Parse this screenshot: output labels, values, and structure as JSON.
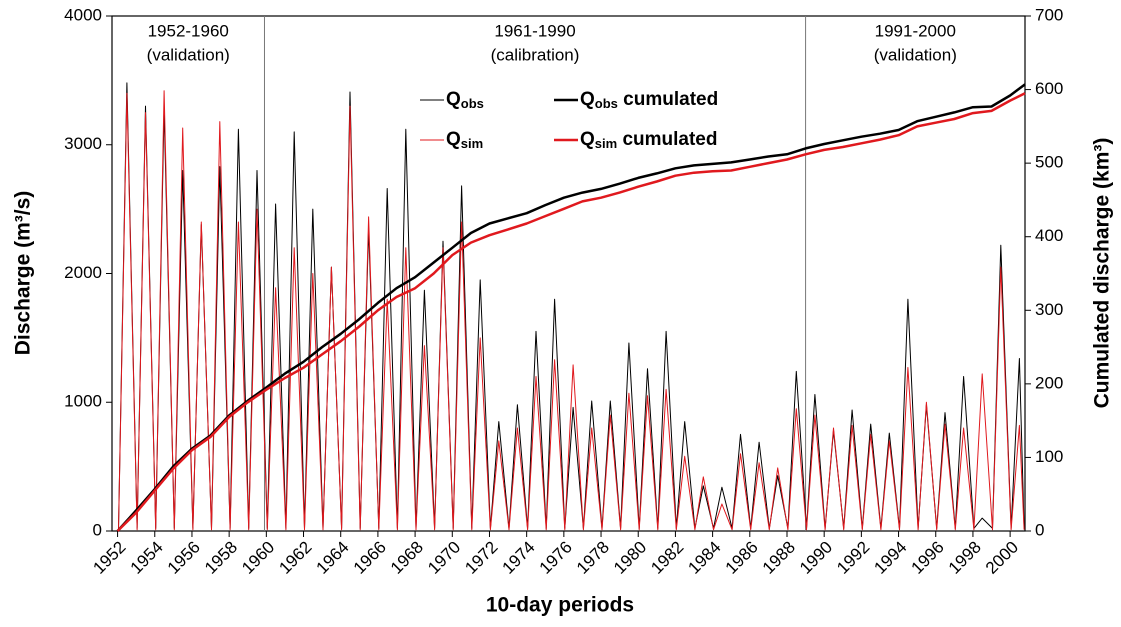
{
  "chart_data": {
    "type": "line",
    "x_label": "10-day periods",
    "y_label": "Discharge (m³/s)",
    "y2_label": "Cumulated discharge (km³)",
    "xlim": [
      1951.7,
      2000.8
    ],
    "xticks": [
      1952,
      1954,
      1956,
      1958,
      1960,
      1962,
      1964,
      1966,
      1968,
      1970,
      1972,
      1974,
      1976,
      1978,
      1980,
      1982,
      1984,
      1986,
      1988,
      1990,
      1992,
      1994,
      1996,
      1998,
      2000
    ],
    "ylim": [
      0,
      4000
    ],
    "yticks": [
      0,
      1000,
      2000,
      3000,
      4000
    ],
    "y2lim": [
      0,
      700
    ],
    "y2ticks": [
      0,
      100,
      200,
      300,
      400,
      500,
      600,
      700
    ],
    "legend": "upper center",
    "dividers": [
      1959.9,
      1989.0
    ],
    "annotations": [
      [
        "1952-1960",
        "(validation)"
      ],
      [
        "1961-1990",
        "(calibration)"
      ],
      [
        "1991-2000",
        "(validation)"
      ]
    ],
    "series": [
      {
        "name": [
          "Q",
          "obs"
        ],
        "color": "#000000",
        "width": 1,
        "x": [
          1952.05,
          1952.5,
          1953.05,
          1953.5,
          1954.05,
          1954.5,
          1955.05,
          1955.5,
          1956.05,
          1956.5,
          1957.05,
          1957.5,
          1958.05,
          1958.5,
          1959.05,
          1959.5,
          1960.05,
          1960.5,
          1961.05,
          1961.5,
          1962.05,
          1962.5,
          1963.05,
          1963.5,
          1964.05,
          1964.5,
          1965.05,
          1965.5,
          1966.05,
          1966.5,
          1967.05,
          1967.5,
          1968.05,
          1968.5,
          1969.05,
          1969.5,
          1970.05,
          1970.5,
          1971.05,
          1971.5,
          1972.05,
          1972.5,
          1973.05,
          1973.5,
          1974.05,
          1974.5,
          1975.05,
          1975.5,
          1976.05,
          1976.5,
          1977.05,
          1977.5,
          1978.05,
          1978.5,
          1979.05,
          1979.5,
          1980.05,
          1980.5,
          1981.05,
          1981.5,
          1982.05,
          1982.5,
          1983.05,
          1983.5,
          1984.05,
          1984.5,
          1985.05,
          1985.5,
          1986.05,
          1986.5,
          1987.05,
          1987.5,
          1988.05,
          1988.5,
          1989.05,
          1989.5,
          1990.05,
          1990.5,
          1991.05,
          1991.5,
          1992.05,
          1992.5,
          1993.05,
          1993.5,
          1994.05,
          1994.5,
          1995.05,
          1995.5,
          1996.05,
          1996.5,
          1997.05,
          1997.5,
          1998.05,
          1998.5,
          1999.05,
          1999.5,
          2000.05,
          2000.5,
          2000.75
        ],
        "values": [
          20,
          3480,
          20,
          3300,
          20,
          3280,
          20,
          2800,
          20,
          2380,
          20,
          2830,
          20,
          3120,
          20,
          2800,
          20,
          2540,
          20,
          3100,
          20,
          2500,
          20,
          2050,
          20,
          3410,
          20,
          2350,
          20,
          2660,
          20,
          3120,
          20,
          1870,
          20,
          2250,
          20,
          2680,
          20,
          1950,
          20,
          850,
          20,
          980,
          20,
          1550,
          20,
          1800,
          20,
          960,
          20,
          1010,
          20,
          1010,
          20,
          1460,
          20,
          1260,
          20,
          1550,
          20,
          850,
          20,
          350,
          20,
          340,
          20,
          750,
          20,
          690,
          20,
          430,
          20,
          1240,
          20,
          1060,
          20,
          780,
          20,
          940,
          20,
          830,
          20,
          760,
          20,
          1800,
          20,
          980,
          20,
          920,
          20,
          1200,
          20,
          100,
          20,
          2220,
          20,
          1340,
          20
        ]
      },
      {
        "name": [
          "Q",
          "sim"
        ],
        "color": "#e0191e",
        "width": 1,
        "x": [
          1952.05,
          1952.5,
          1953.05,
          1953.5,
          1954.05,
          1954.5,
          1955.05,
          1955.5,
          1956.05,
          1956.5,
          1957.05,
          1957.5,
          1958.05,
          1958.5,
          1959.05,
          1959.5,
          1960.05,
          1960.5,
          1961.05,
          1961.5,
          1962.05,
          1962.5,
          1963.05,
          1963.5,
          1964.05,
          1964.5,
          1965.05,
          1965.5,
          1966.05,
          1966.5,
          1967.05,
          1967.5,
          1968.05,
          1968.5,
          1969.05,
          1969.5,
          1970.05,
          1970.5,
          1971.05,
          1971.5,
          1972.05,
          1972.5,
          1973.05,
          1973.5,
          1974.05,
          1974.5,
          1975.05,
          1975.5,
          1976.05,
          1976.5,
          1977.05,
          1977.5,
          1978.05,
          1978.5,
          1979.05,
          1979.5,
          1980.05,
          1980.5,
          1981.05,
          1981.5,
          1982.05,
          1982.5,
          1983.05,
          1983.5,
          1984.05,
          1984.5,
          1985.05,
          1985.5,
          1986.05,
          1986.5,
          1987.05,
          1987.5,
          1988.05,
          1988.5,
          1989.05,
          1989.5,
          1990.05,
          1990.5,
          1991.05,
          1991.5,
          1992.05,
          1992.5,
          1993.05,
          1993.5,
          1994.05,
          1994.5,
          1995.05,
          1995.5,
          1996.05,
          1996.5,
          1997.05,
          1997.5,
          1998.05,
          1998.5,
          1999.05,
          1999.5,
          2000.05,
          2000.5,
          2000.75
        ],
        "values": [
          10,
          3400,
          10,
          3250,
          10,
          3420,
          10,
          3130,
          10,
          2400,
          10,
          3180,
          10,
          2400,
          10,
          2500,
          10,
          1890,
          10,
          2200,
          10,
          2000,
          10,
          2050,
          10,
          3300,
          10,
          2440,
          10,
          1800,
          10,
          2200,
          10,
          1440,
          10,
          2200,
          10,
          2400,
          10,
          1500,
          10,
          700,
          10,
          800,
          10,
          1200,
          10,
          1330,
          10,
          1290,
          10,
          800,
          10,
          900,
          10,
          1070,
          10,
          1050,
          10,
          1100,
          10,
          580,
          10,
          420,
          10,
          210,
          10,
          600,
          10,
          530,
          10,
          490,
          10,
          950,
          10,
          900,
          10,
          800,
          10,
          820,
          10,
          750,
          10,
          700,
          10,
          1270,
          10,
          1000,
          10,
          830,
          10,
          800,
          10,
          1220,
          10,
          2050,
          10,
          820,
          10
        ]
      },
      {
        "name": [
          "Q",
          "obs",
          " cumulated"
        ],
        "color": "#000000",
        "width": 2.5,
        "axis": "y2",
        "x": [
          1952,
          1953,
          1954,
          1955,
          1956,
          1957,
          1958,
          1959,
          1960,
          1961,
          1962,
          1963,
          1964,
          1965,
          1966,
          1967,
          1968,
          1969,
          1970,
          1971,
          1972,
          1973,
          1974,
          1975,
          1976,
          1977,
          1978,
          1979,
          1980,
          1981,
          1982,
          1983,
          1984,
          1985,
          1986,
          1987,
          1988,
          1989,
          1990,
          1991,
          1992,
          1993,
          1994,
          1995,
          1996,
          1997,
          1998,
          1999,
          2000,
          2000.8
        ],
        "values": [
          0,
          28,
          57,
          88,
          112,
          130,
          157,
          177,
          195,
          214,
          230,
          250,
          268,
          288,
          310,
          330,
          345,
          365,
          385,
          405,
          418,
          425,
          432,
          443,
          453,
          460,
          465,
          472,
          480,
          486,
          493,
          497,
          499,
          501,
          505,
          509,
          512,
          520,
          526,
          531,
          536,
          540,
          545,
          557,
          563,
          569,
          576,
          577,
          592,
          607
        ]
      },
      {
        "name": [
          "Q",
          "sim",
          " cumulated"
        ],
        "color": "#e0191e",
        "width": 2.5,
        "axis": "y2",
        "x": [
          1952,
          1953,
          1954,
          1955,
          1956,
          1957,
          1958,
          1959,
          1960,
          1961,
          1962,
          1963,
          1964,
          1965,
          1966,
          1967,
          1968,
          1969,
          1970,
          1971,
          1972,
          1973,
          1974,
          1975,
          1976,
          1977,
          1978,
          1979,
          1980,
          1981,
          1982,
          1983,
          1984,
          1985,
          1986,
          1987,
          1988,
          1989,
          1990,
          1991,
          1992,
          1993,
          1994,
          1995,
          1996,
          1997,
          1998,
          1999,
          2000,
          2000.8
        ],
        "values": [
          0,
          25,
          55,
          85,
          110,
          128,
          155,
          175,
          192,
          208,
          222,
          240,
          258,
          278,
          300,
          318,
          330,
          350,
          375,
          392,
          402,
          410,
          418,
          428,
          438,
          448,
          453,
          460,
          468,
          475,
          483,
          487,
          489,
          490,
          495,
          500,
          505,
          512,
          518,
          522,
          527,
          532,
          538,
          550,
          555,
          560,
          568,
          571,
          585,
          595
        ]
      }
    ]
  }
}
